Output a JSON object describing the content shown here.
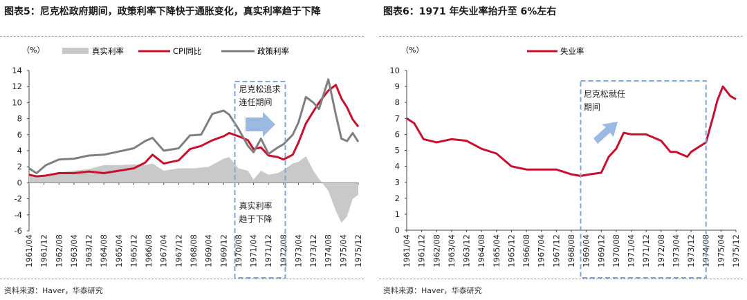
{
  "left": {
    "title_num": "图表5：",
    "title_text": "尼克松政府期间，政策利率下降快于通胀变化，真实利率趋于下降",
    "unit": "（%）",
    "source": "资料来源：Haver，华泰研究",
    "colors": {
      "real_rate": "#c9c9c9",
      "cpi": "#c8102e",
      "policy": "#7f7f7f",
      "box": "#7ea6d6",
      "arrow": "#8fb3e0"
    },
    "annotation_top": "尼克松追求\n连任期间",
    "annotation_bottom": "真实利率\n趋于下降",
    "chart_data": {
      "type": "line",
      "title": "尼克松政府期间，政策利率下降快于通胀变化，真实利率趋于下降",
      "ylabel": "（%）",
      "ylim": [
        -6,
        14
      ],
      "yticks": [
        -6,
        -4,
        -2,
        0,
        2,
        4,
        6,
        8,
        10,
        12,
        14
      ],
      "x_start": "1961/04",
      "x_end": "1975/12",
      "tick_labels": [
        "1961/04",
        "1961/12",
        "1962/08",
        "1963/04",
        "1963/12",
        "1964/08",
        "1965/04",
        "1965/12",
        "1966/08",
        "1967/04",
        "1967/12",
        "1968/08",
        "1969/04",
        "1969/12",
        "1970/08",
        "1971/04",
        "1971/12",
        "1972/08",
        "1973/04",
        "1973/12",
        "1974/08",
        "1975/04",
        "1975/12"
      ],
      "legend": [
        "真实利率",
        "CPI同比",
        "政策利率"
      ],
      "highlight_period": [
        "1970/06",
        "1972/09"
      ],
      "series": [
        {
          "name": "真实利率",
          "style": "area",
          "points": [
            [
              "1961/04",
              0.8
            ],
            [
              "1962/01",
              1.0
            ],
            [
              "1962/08",
              1.3
            ],
            [
              "1963/04",
              1.5
            ],
            [
              "1963/12",
              1.7
            ],
            [
              "1964/08",
              2.2
            ],
            [
              "1965/04",
              2.2
            ],
            [
              "1965/12",
              2.3
            ],
            [
              "1966/06",
              2.2
            ],
            [
              "1966/10",
              2.4
            ],
            [
              "1967/04",
              1.5
            ],
            [
              "1967/12",
              1.8
            ],
            [
              "1968/08",
              1.8
            ],
            [
              "1969/04",
              2.0
            ],
            [
              "1969/12",
              3.0
            ],
            [
              "1970/03",
              3.2
            ],
            [
              "1970/08",
              1.8
            ],
            [
              "1971/01",
              1.5
            ],
            [
              "1971/04",
              0.4
            ],
            [
              "1971/08",
              1.5
            ],
            [
              "1971/12",
              1.0
            ],
            [
              "1972/05",
              1.2
            ],
            [
              "1972/08",
              1.6
            ],
            [
              "1973/01",
              2.4
            ],
            [
              "1973/04",
              2.6
            ],
            [
              "1973/08",
              3.3
            ],
            [
              "1973/12",
              1.5
            ],
            [
              "1974/03",
              0.5
            ],
            [
              "1974/08",
              -1.0
            ],
            [
              "1974/12",
              -3.5
            ],
            [
              "1975/03",
              -5.0
            ],
            [
              "1975/06",
              -4.2
            ],
            [
              "1975/09",
              -2.0
            ],
            [
              "1975/12",
              -1.5
            ]
          ]
        },
        {
          "name": "CPI同比",
          "style": "line",
          "points": [
            [
              "1961/04",
              1.0
            ],
            [
              "1961/08",
              0.8
            ],
            [
              "1962/01",
              0.9
            ],
            [
              "1962/08",
              1.2
            ],
            [
              "1963/04",
              1.2
            ],
            [
              "1963/12",
              1.4
            ],
            [
              "1964/08",
              1.2
            ],
            [
              "1965/04",
              1.5
            ],
            [
              "1965/12",
              1.8
            ],
            [
              "1966/06",
              2.5
            ],
            [
              "1966/10",
              3.5
            ],
            [
              "1967/04",
              2.4
            ],
            [
              "1967/12",
              2.8
            ],
            [
              "1968/06",
              4.2
            ],
            [
              "1968/12",
              4.6
            ],
            [
              "1969/06",
              5.3
            ],
            [
              "1969/12",
              5.8
            ],
            [
              "1970/03",
              6.2
            ],
            [
              "1970/08",
              5.8
            ],
            [
              "1971/01",
              5.3
            ],
            [
              "1971/04",
              4.2
            ],
            [
              "1971/08",
              4.4
            ],
            [
              "1971/12",
              3.4
            ],
            [
              "1972/05",
              3.2
            ],
            [
              "1972/08",
              2.9
            ],
            [
              "1973/01",
              3.5
            ],
            [
              "1973/04",
              5.0
            ],
            [
              "1973/08",
              7.4
            ],
            [
              "1973/12",
              8.9
            ],
            [
              "1974/03",
              10.0
            ],
            [
              "1974/08",
              11.5
            ],
            [
              "1974/12",
              12.2
            ],
            [
              "1975/03",
              10.5
            ],
            [
              "1975/06",
              9.4
            ],
            [
              "1975/09",
              7.9
            ],
            [
              "1975/12",
              7.0
            ]
          ]
        },
        {
          "name": "政策利率",
          "style": "line",
          "points": [
            [
              "1961/04",
              1.8
            ],
            [
              "1961/08",
              1.2
            ],
            [
              "1962/01",
              2.2
            ],
            [
              "1962/08",
              2.9
            ],
            [
              "1963/04",
              3.0
            ],
            [
              "1963/12",
              3.4
            ],
            [
              "1964/08",
              3.5
            ],
            [
              "1965/04",
              3.9
            ],
            [
              "1965/12",
              4.3
            ],
            [
              "1966/06",
              5.2
            ],
            [
              "1966/10",
              5.6
            ],
            [
              "1967/04",
              4.0
            ],
            [
              "1967/12",
              4.3
            ],
            [
              "1968/06",
              5.9
            ],
            [
              "1968/12",
              6.0
            ],
            [
              "1969/06",
              8.6
            ],
            [
              "1969/12",
              9.0
            ],
            [
              "1970/03",
              8.5
            ],
            [
              "1970/08",
              6.7
            ],
            [
              "1971/01",
              4.6
            ],
            [
              "1971/04",
              3.8
            ],
            [
              "1971/08",
              5.5
            ],
            [
              "1971/12",
              3.6
            ],
            [
              "1972/05",
              4.4
            ],
            [
              "1972/08",
              4.8
            ],
            [
              "1973/01",
              6.0
            ],
            [
              "1973/04",
              7.5
            ],
            [
              "1973/08",
              10.7
            ],
            [
              "1973/12",
              10.0
            ],
            [
              "1974/03",
              9.2
            ],
            [
              "1974/08",
              12.9
            ],
            [
              "1974/12",
              8.5
            ],
            [
              "1975/03",
              5.5
            ],
            [
              "1975/06",
              5.2
            ],
            [
              "1975/09",
              6.2
            ],
            [
              "1975/12",
              5.1
            ]
          ]
        }
      ]
    }
  },
  "right": {
    "title_num": "图表6：",
    "title_text": "1971 年失业率抬升至 6%左右",
    "unit": "（%）",
    "source": "资料来源：Haver，华泰研究",
    "colors": {
      "unemp": "#c8102e",
      "box": "#7ea6d6",
      "arrow": "#8fb3e0"
    },
    "annotation": "尼克松就任\n期间",
    "chart_data": {
      "type": "line",
      "title": "1971 年失业率抬升至 6%左右",
      "ylabel": "（%）",
      "ylim": [
        0,
        10
      ],
      "yticks": [
        0,
        1,
        2,
        3,
        4,
        5,
        6,
        7,
        8,
        9,
        10
      ],
      "x_start": "1961/04",
      "x_end": "1975/12",
      "tick_labels": [
        "1961/04",
        "1961/12",
        "1962/08",
        "1963/04",
        "1963/12",
        "1964/08",
        "1965/04",
        "1965/12",
        "1966/08",
        "1967/04",
        "1967/12",
        "1968/08",
        "1969/04",
        "1969/12",
        "1970/08",
        "1971/04",
        "1971/12",
        "1972/08",
        "1973/04",
        "1973/12",
        "1974/08",
        "1975/04",
        "1975/12"
      ],
      "legend": [
        "失业率"
      ],
      "highlight_period": [
        "1969/01",
        "1974/08"
      ],
      "series": [
        {
          "name": "失业率",
          "points": [
            [
              "1961/04",
              7.0
            ],
            [
              "1961/08",
              6.7
            ],
            [
              "1962/01",
              5.7
            ],
            [
              "1962/08",
              5.5
            ],
            [
              "1963/04",
              5.7
            ],
            [
              "1963/12",
              5.6
            ],
            [
              "1964/08",
              5.1
            ],
            [
              "1965/04",
              4.8
            ],
            [
              "1965/12",
              4.0
            ],
            [
              "1966/08",
              3.8
            ],
            [
              "1967/04",
              3.8
            ],
            [
              "1967/12",
              3.8
            ],
            [
              "1968/08",
              3.5
            ],
            [
              "1969/01",
              3.4
            ],
            [
              "1969/06",
              3.5
            ],
            [
              "1969/12",
              3.6
            ],
            [
              "1970/04",
              4.6
            ],
            [
              "1970/08",
              5.1
            ],
            [
              "1970/12",
              6.1
            ],
            [
              "1971/04",
              6.0
            ],
            [
              "1971/12",
              6.0
            ],
            [
              "1972/08",
              5.6
            ],
            [
              "1973/01",
              4.9
            ],
            [
              "1973/04",
              4.9
            ],
            [
              "1973/10",
              4.6
            ],
            [
              "1973/12",
              4.9
            ],
            [
              "1974/08",
              5.5
            ],
            [
              "1974/12",
              7.2
            ],
            [
              "1975/02",
              8.1
            ],
            [
              "1975/05",
              9.0
            ],
            [
              "1975/09",
              8.4
            ],
            [
              "1975/12",
              8.2
            ]
          ]
        }
      ]
    }
  }
}
